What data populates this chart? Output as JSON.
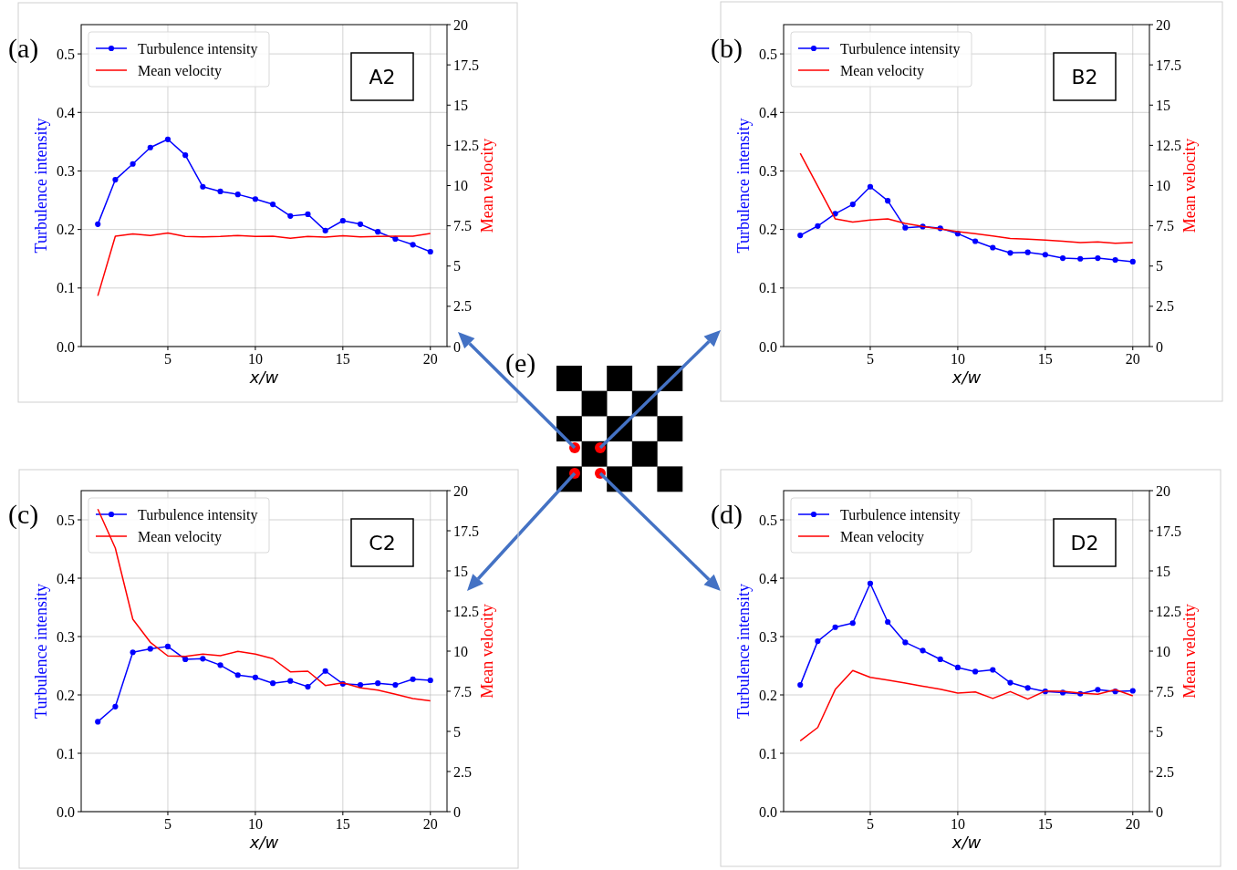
{
  "chart_data": [
    {
      "type": "line",
      "x": [
        1,
        2,
        3,
        4,
        5,
        6,
        7,
        8,
        9,
        10,
        11,
        12,
        13,
        14,
        15,
        16,
        17,
        18,
        19,
        20
      ],
      "xlim": [
        0.05,
        20.95
      ],
      "xticks": [
        5,
        10,
        15,
        20
      ],
      "ylim": [
        0,
        0.55
      ],
      "yticks": [
        {
          "value": 0,
          "label": "0.0"
        },
        {
          "value": 0.1,
          "label": "0.1"
        },
        {
          "value": 0.2,
          "label": "0.2"
        },
        {
          "value": 0.3,
          "label": "0.3"
        },
        {
          "value": 0.4,
          "label": "0.4"
        },
        {
          "value": 0.5,
          "label": "0.5"
        }
      ],
      "y2lim": [
        0,
        20
      ],
      "y2ticks": [
        0,
        2.5,
        5,
        7.5,
        10,
        12.5,
        15,
        17.5,
        20
      ],
      "xlabel": "x/w",
      "ylabel": "Turbulence intensity",
      "y2label": "Mean velocity",
      "legend": "top left",
      "grid": true,
      "annotations": [
        "(a)",
        "A2"
      ],
      "series": [
        {
          "name": "Turbulence intensity",
          "color": "#0000ff",
          "marker": "circle",
          "values": [
            0.209,
            0.285,
            0.312,
            0.34,
            0.354,
            0.327,
            0.273,
            0.265,
            0.26,
            0.252,
            0.243,
            0.223,
            0.226,
            0.198,
            0.215,
            0.209,
            0.196,
            0.184,
            0.174,
            0.162
          ]
        },
        {
          "name": "Mean velocity",
          "color": "#ff0000",
          "axis": "y2",
          "values": [
            3.15,
            6.86,
            7.0,
            6.9,
            7.05,
            6.84,
            6.82,
            6.84,
            6.9,
            6.84,
            6.86,
            6.73,
            6.84,
            6.8,
            6.88,
            6.82,
            6.84,
            6.86,
            6.86,
            7.03
          ]
        }
      ]
    },
    {
      "type": "line",
      "x": [
        1,
        2,
        3,
        4,
        5,
        6,
        7,
        8,
        9,
        10,
        11,
        12,
        13,
        14,
        15,
        16,
        17,
        18,
        19,
        20
      ],
      "xlim": [
        0.05,
        20.95
      ],
      "xticks": [
        5,
        10,
        15,
        20
      ],
      "ylim": [
        0,
        0.55
      ],
      "yticks": [
        {
          "value": 0,
          "label": "0.0"
        },
        {
          "value": 0.1,
          "label": "0.1"
        },
        {
          "value": 0.2,
          "label": "0.2"
        },
        {
          "value": 0.3,
          "label": "0.3"
        },
        {
          "value": 0.4,
          "label": "0.4"
        },
        {
          "value": 0.5,
          "label": "0.5"
        }
      ],
      "y2lim": [
        0,
        20
      ],
      "y2ticks": [
        0,
        2.5,
        5,
        7.5,
        10,
        12.5,
        15,
        17.5,
        20
      ],
      "xlabel": "x/w",
      "ylabel": "Turbulence intensity",
      "y2label": "Mean velocity",
      "legend": "top left",
      "grid": true,
      "annotations": [
        "(b)",
        "B2"
      ],
      "series": [
        {
          "name": "Turbulence intensity",
          "color": "#0000ff",
          "marker": "circle",
          "values": [
            0.19,
            0.206,
            0.227,
            0.243,
            0.273,
            0.249,
            0.203,
            0.205,
            0.202,
            0.193,
            0.18,
            0.169,
            0.16,
            0.161,
            0.157,
            0.151,
            0.15,
            0.151,
            0.148,
            0.145
          ]
        },
        {
          "name": "Mean velocity",
          "color": "#ff0000",
          "axis": "y2",
          "values": [
            12.0,
            9.97,
            7.93,
            7.74,
            7.86,
            7.93,
            7.65,
            7.46,
            7.31,
            7.14,
            7.01,
            6.87,
            6.72,
            6.67,
            6.61,
            6.55,
            6.46,
            6.5,
            6.42,
            6.46
          ]
        }
      ]
    },
    {
      "type": "other",
      "annotations": [
        "(e)"
      ]
    },
    {
      "type": "line",
      "x": [
        1,
        2,
        3,
        4,
        5,
        6,
        7,
        8,
        9,
        10,
        11,
        12,
        13,
        14,
        15,
        16,
        17,
        18,
        19,
        20
      ],
      "xlim": [
        0.05,
        20.95
      ],
      "xticks": [
        5,
        10,
        15,
        20
      ],
      "ylim": [
        0,
        0.55
      ],
      "yticks": [
        {
          "value": 0,
          "label": "0.0"
        },
        {
          "value": 0.1,
          "label": "0.1"
        },
        {
          "value": 0.2,
          "label": "0.2"
        },
        {
          "value": 0.3,
          "label": "0.3"
        },
        {
          "value": 0.4,
          "label": "0.4"
        },
        {
          "value": 0.5,
          "label": "0.5"
        }
      ],
      "y2lim": [
        0,
        20
      ],
      "y2ticks": [
        0,
        2.5,
        5,
        7.5,
        10,
        12.5,
        15,
        17.5,
        20
      ],
      "xlabel": "x/w",
      "ylabel": "Turbulence intensity",
      "y2label": "Mean velocity",
      "legend": "top left",
      "grid": true,
      "annotations": [
        "(c)",
        "C2"
      ],
      "series": [
        {
          "name": "Turbulence intensity",
          "color": "#0000ff",
          "marker": "circle",
          "values": [
            0.154,
            0.18,
            0.273,
            0.279,
            0.283,
            0.261,
            0.262,
            0.251,
            0.234,
            0.23,
            0.22,
            0.224,
            0.214,
            0.241,
            0.219,
            0.217,
            0.22,
            0.217,
            0.227,
            0.225
          ]
        },
        {
          "name": "Mean velocity",
          "color": "#ff0000",
          "axis": "y2",
          "values": [
            18.85,
            16.42,
            11.99,
            10.55,
            9.7,
            9.68,
            9.81,
            9.72,
            9.98,
            9.81,
            9.53,
            8.71,
            8.75,
            7.86,
            8.03,
            7.71,
            7.57,
            7.31,
            7.05,
            6.91
          ]
        }
      ]
    },
    {
      "type": "line",
      "x": [
        1,
        2,
        3,
        4,
        5,
        6,
        7,
        8,
        9,
        10,
        11,
        12,
        13,
        14,
        15,
        16,
        17,
        18,
        19,
        20
      ],
      "xlim": [
        0.05,
        20.95
      ],
      "xticks": [
        5,
        10,
        15,
        20
      ],
      "ylim": [
        0,
        0.55
      ],
      "yticks": [
        {
          "value": 0,
          "label": "0.0"
        },
        {
          "value": 0.1,
          "label": "0.1"
        },
        {
          "value": 0.2,
          "label": "0.2"
        },
        {
          "value": 0.3,
          "label": "0.3"
        },
        {
          "value": 0.4,
          "label": "0.4"
        },
        {
          "value": 0.5,
          "label": "0.5"
        }
      ],
      "y2lim": [
        0,
        20
      ],
      "y2ticks": [
        0,
        2.5,
        5,
        7.5,
        10,
        12.5,
        15,
        17.5,
        20
      ],
      "xlabel": "x/w",
      "ylabel": "Turbulence intensity",
      "y2label": "Mean velocity",
      "legend": "top left",
      "grid": true,
      "annotations": [
        "(d)",
        "D2"
      ],
      "series": [
        {
          "name": "Turbulence intensity",
          "color": "#0000ff",
          "marker": "circle",
          "values": [
            0.217,
            0.292,
            0.316,
            0.323,
            0.391,
            0.325,
            0.29,
            0.276,
            0.261,
            0.247,
            0.24,
            0.243,
            0.221,
            0.212,
            0.206,
            0.204,
            0.202,
            0.209,
            0.206,
            0.207
          ]
        },
        {
          "name": "Mean velocity",
          "color": "#ff0000",
          "axis": "y2",
          "values": [
            4.41,
            5.24,
            7.61,
            8.79,
            8.37,
            8.2,
            8.01,
            7.81,
            7.63,
            7.39,
            7.46,
            7.05,
            7.48,
            7.01,
            7.52,
            7.5,
            7.39,
            7.31,
            7.6,
            7.22
          ]
        }
      ]
    }
  ]
}
